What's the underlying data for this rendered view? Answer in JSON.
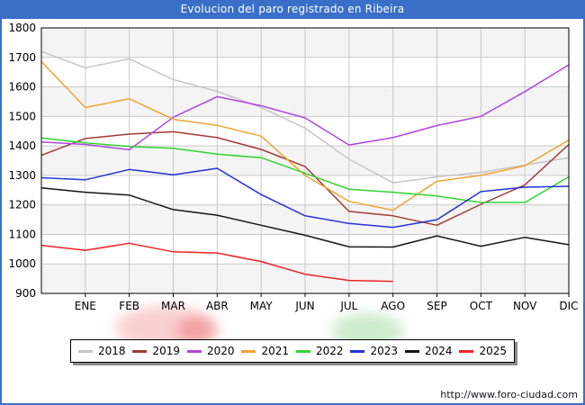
{
  "title": "Evolucion del paro registrado en Ribeira",
  "footer": {
    "url": "http://www.foro-ciudad.com"
  },
  "chart_data": {
    "type": "line",
    "title": "Evolucion del paro registrado en Ribeira",
    "xlabel": "",
    "ylabel": "",
    "x_labels": [
      "ENE",
      "FEB",
      "MAR",
      "ABR",
      "MAY",
      "JUN",
      "JUL",
      "AGO",
      "SEP",
      "OCT",
      "NOV",
      "DIC"
    ],
    "ylim": [
      900,
      1800
    ],
    "y_tick_step": 100,
    "y_tick_labels": [
      1800,
      1700,
      1600,
      1500,
      1400,
      1300,
      1200,
      1100,
      1000,
      900
    ],
    "grid": true,
    "legend_position": "bottom",
    "note": "Each line starts at the left axis with the previous December value, then one point per month ENE-DIC. 2025 ends at AGO.",
    "series": [
      {
        "name": "2018",
        "color": "#c6c6c6",
        "dec_prev": 1720,
        "values": [
          1665,
          1695,
          1625,
          1585,
          1530,
          1460,
          1355,
          1275,
          1295,
          1310,
          1335,
          1360
        ]
      },
      {
        "name": "2019",
        "color": "#a33a34",
        "dec_prev": 1368,
        "values": [
          1425,
          1440,
          1448,
          1428,
          1388,
          1330,
          1178,
          1163,
          1131,
          1202,
          1268,
          1405
        ]
      },
      {
        "name": "2020",
        "color": "#b144e0",
        "dec_prev": 1413,
        "values": [
          1405,
          1387,
          1497,
          1567,
          1536,
          1495,
          1403,
          1428,
          1469,
          1500,
          1584,
          1675
        ]
      },
      {
        "name": "2021",
        "color": "#f0a330",
        "dec_prev": 1686,
        "values": [
          1530,
          1560,
          1490,
          1470,
          1433,
          1300,
          1212,
          1182,
          1280,
          1300,
          1333,
          1420
        ]
      },
      {
        "name": "2022",
        "color": "#2ed52e",
        "dec_prev": 1427,
        "values": [
          1410,
          1398,
          1392,
          1372,
          1360,
          1307,
          1253,
          1243,
          1230,
          1208,
          1208,
          1295
        ]
      },
      {
        "name": "2023",
        "color": "#2433d8",
        "dec_prev": 1292,
        "values": [
          1285,
          1320,
          1302,
          1324,
          1235,
          1163,
          1137,
          1124,
          1150,
          1245,
          1260,
          1263
        ]
      },
      {
        "name": "2024",
        "color": "#151515",
        "dec_prev": 1258,
        "values": [
          1243,
          1233,
          1184,
          1165,
          1131,
          1097,
          1058,
          1057,
          1095,
          1060,
          1090,
          1065
        ]
      },
      {
        "name": "2025",
        "color": "#ee2222",
        "dec_prev": 1063,
        "values": [
          1046,
          1070,
          1041,
          1037,
          1008,
          965,
          944,
          941,
          null,
          null,
          null,
          null
        ]
      }
    ]
  }
}
